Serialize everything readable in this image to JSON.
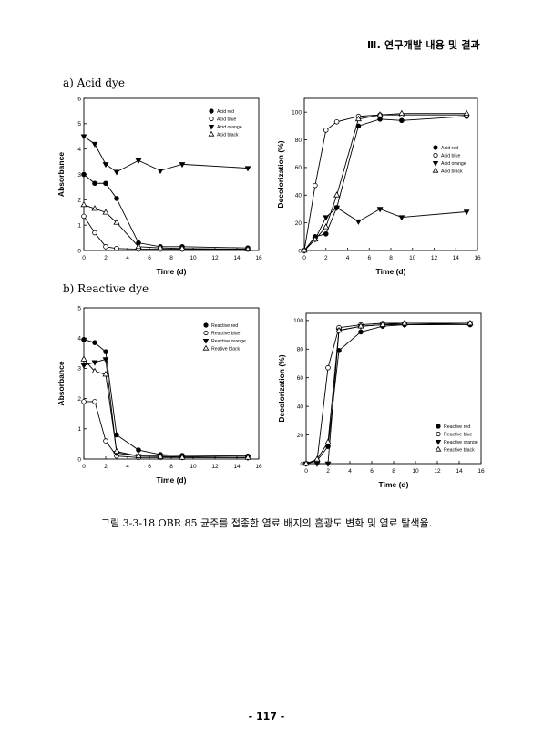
{
  "header": {
    "title": "Ⅲ. 연구개발 내용 및 결과"
  },
  "sections": {
    "a": "a) Acid dye",
    "b": "b) Reactive dye"
  },
  "caption": "그림 3-3-18 OBR 85 균주를 접종한 염료 배지의 흡광도 변화 및 염료 탈색율.",
  "page_number": "- 117 -",
  "chart_data": [
    {
      "id": "acid-absorbance",
      "type": "line",
      "xlabel": "Time (d)",
      "ylabel": "Absorbance",
      "xlim": [
        0,
        16
      ],
      "ylim": [
        0,
        6
      ],
      "xticks": [
        0,
        2,
        4,
        6,
        8,
        10,
        12,
        14,
        16
      ],
      "yticks": [
        0,
        1,
        2,
        3,
        4,
        5,
        6
      ],
      "legend_position": "top-right",
      "x": [
        0,
        1,
        2,
        3,
        5,
        7,
        9,
        15
      ],
      "series": [
        {
          "name": "Acid red",
          "marker": "filled-circle",
          "values": [
            3.0,
            2.65,
            2.65,
            2.05,
            0.3,
            0.15,
            0.15,
            0.1
          ]
        },
        {
          "name": "Acid blue",
          "marker": "open-circle",
          "values": [
            1.35,
            0.7,
            0.15,
            0.08,
            0.05,
            0.05,
            0.05,
            0.05
          ]
        },
        {
          "name": "Acid orange",
          "marker": "filled-triangle-down",
          "values": [
            4.5,
            4.2,
            3.4,
            3.1,
            3.55,
            3.15,
            3.4,
            3.25
          ]
        },
        {
          "name": "Acid black",
          "marker": "open-triangle-up",
          "values": [
            1.8,
            1.65,
            1.5,
            1.1,
            0.15,
            0.1,
            0.08,
            0.05
          ]
        }
      ]
    },
    {
      "id": "acid-decolorization",
      "type": "line",
      "xlabel": "Time (d)",
      "ylabel": "Decolorization (%)",
      "xlim": [
        0,
        16
      ],
      "ylim": [
        0,
        110
      ],
      "xticks": [
        0,
        2,
        4,
        6,
        8,
        10,
        12,
        14,
        16
      ],
      "yticks": [
        0,
        20,
        40,
        60,
        80,
        100
      ],
      "legend_position": "right",
      "x": [
        0,
        1,
        2,
        3,
        5,
        7,
        9,
        15
      ],
      "series": [
        {
          "name": "Acid red",
          "marker": "filled-circle",
          "values": [
            0,
            10,
            12,
            31,
            90,
            95,
            94,
            97
          ]
        },
        {
          "name": "Acid blue",
          "marker": "open-circle",
          "values": [
            0,
            47,
            87,
            93,
            97,
            98,
            98,
            98
          ]
        },
        {
          "name": "Acid orange",
          "marker": "filled-triangle-down",
          "values": [
            0,
            8,
            24,
            31,
            21,
            30,
            24,
            28
          ]
        },
        {
          "name": "Acid black",
          "marker": "open-triangle-up",
          "values": [
            0,
            8,
            17,
            40,
            95,
            98,
            99,
            99
          ]
        }
      ]
    },
    {
      "id": "reactive-absorbance",
      "type": "line",
      "xlabel": "Time (d)",
      "ylabel": "Absorbance",
      "xlim": [
        0,
        16
      ],
      "ylim": [
        0,
        5
      ],
      "xticks": [
        0,
        2,
        4,
        6,
        8,
        10,
        12,
        14,
        16
      ],
      "yticks": [
        0,
        1,
        2,
        3,
        4,
        5
      ],
      "legend_position": "top-right",
      "x": [
        0,
        1,
        2,
        3,
        5,
        7,
        9,
        15
      ],
      "series": [
        {
          "name": "Reactive red",
          "marker": "filled-circle",
          "values": [
            3.95,
            3.85,
            3.55,
            0.8,
            0.3,
            0.15,
            0.12,
            0.1
          ]
        },
        {
          "name": "Reactive blue",
          "marker": "open-circle",
          "values": [
            1.9,
            1.9,
            0.6,
            0.1,
            0.05,
            0.05,
            0.05,
            0.05
          ]
        },
        {
          "name": "Reactive orange",
          "marker": "filled-triangle-down",
          "values": [
            3.1,
            3.2,
            3.3,
            0.2,
            0.1,
            0.1,
            0.08,
            0.05
          ]
        },
        {
          "name": "Reative black",
          "marker": "open-triangle-up",
          "values": [
            3.3,
            2.9,
            2.8,
            0.25,
            0.1,
            0.08,
            0.05,
            0.05
          ]
        }
      ]
    },
    {
      "id": "reactive-decolorization",
      "type": "line",
      "xlabel": "Time (d)",
      "ylabel": "Decolorization (%)",
      "xlim": [
        0,
        16
      ],
      "ylim": [
        0,
        105
      ],
      "xticks": [
        0,
        2,
        4,
        6,
        8,
        10,
        12,
        14,
        16
      ],
      "yticks": [
        0,
        20,
        40,
        60,
        80,
        100
      ],
      "legend_position": "bottom-right",
      "x": [
        0,
        1,
        2,
        3,
        5,
        7,
        9,
        15
      ],
      "series": [
        {
          "name": "Reactive red",
          "marker": "filled-circle",
          "values": [
            0,
            2,
            12,
            79,
            92,
            96,
            97,
            97
          ]
        },
        {
          "name": "Reactive blue",
          "marker": "open-circle",
          "values": [
            0,
            2,
            67,
            95,
            97,
            98,
            98,
            98
          ]
        },
        {
          "name": "Reactive orange",
          "marker": "filled-triangle-down",
          "values": [
            0,
            0,
            0,
            93,
            96,
            97,
            97,
            98
          ]
        },
        {
          "name": "Reactive black",
          "marker": "open-triangle-up",
          "values": [
            0,
            3,
            15,
            93,
            96,
            97,
            98,
            98
          ]
        }
      ]
    }
  ]
}
